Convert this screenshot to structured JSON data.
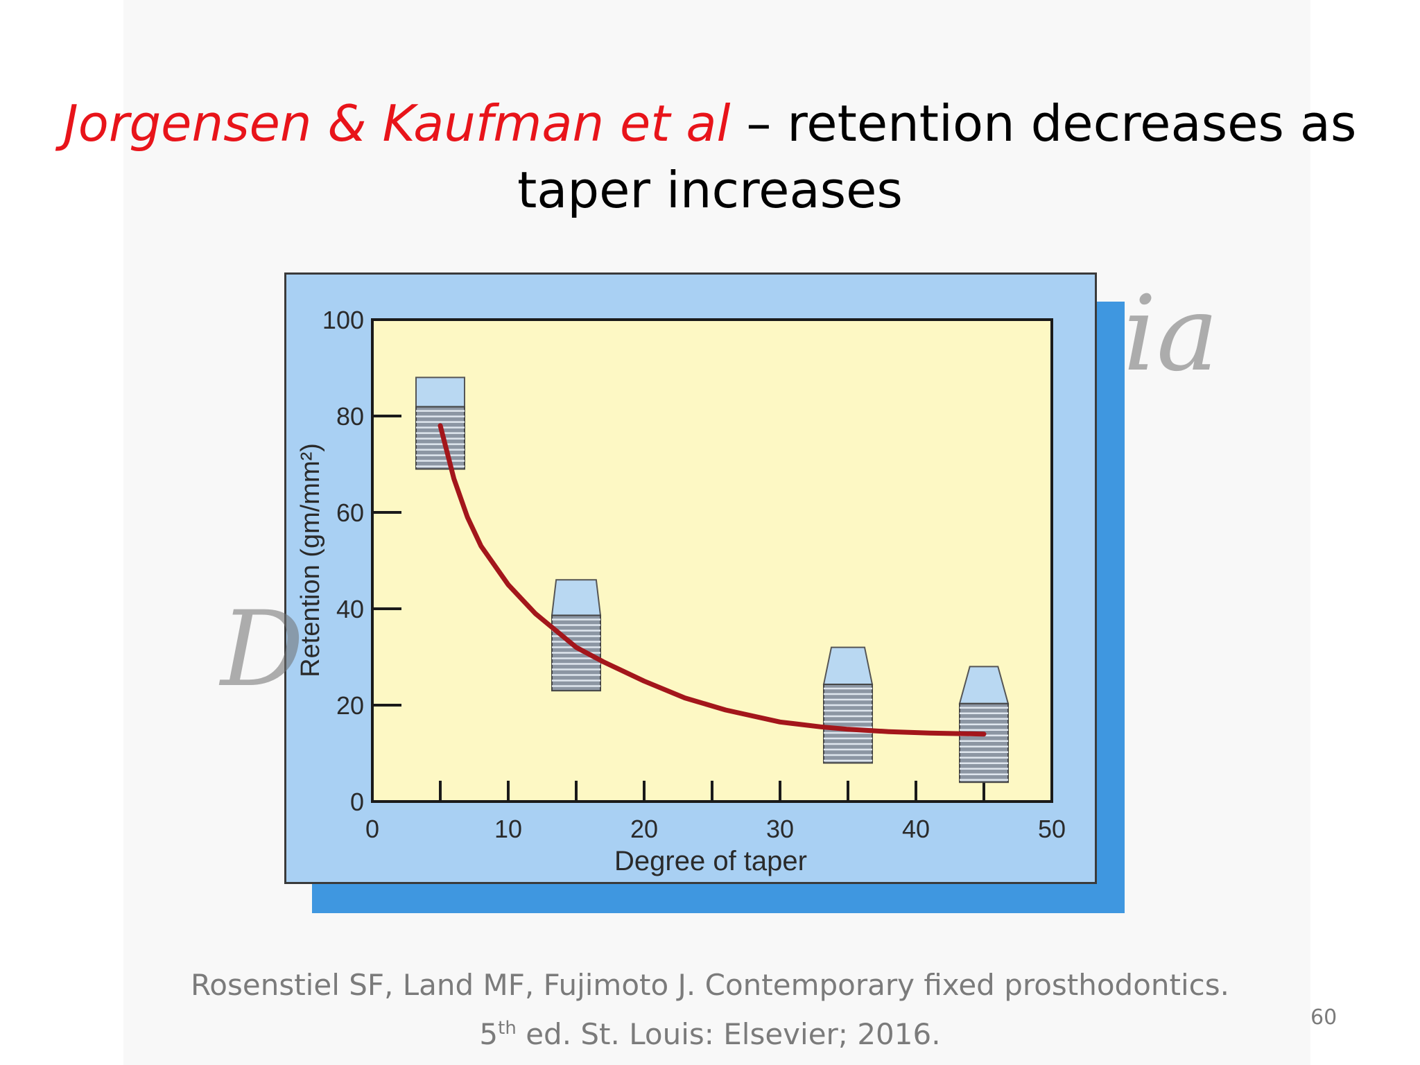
{
  "slide": {
    "title_authors": "Jorgensen & Kaufman et al",
    "title_rest": " – retention decreases as taper increases",
    "citation_line1": "Rosenstiel SF, Land MF, Fujimoto J. Contemporary fixed prosthodontics.",
    "citation_line2_pre": "5",
    "citation_line2_sup": "th",
    "citation_line2_post": " ed. St. Louis: Elsevier; 2016.",
    "page_number": "60",
    "watermark_left": "D",
    "watermark_right": "ia"
  },
  "colors": {
    "author_red": "#e8141a",
    "plot_bg": "#fdf8c4",
    "panel_bg": "#a9d0f3",
    "shadow": "#3f97e0",
    "curve": "#a3161b",
    "tooth": "#b9d8f2"
  },
  "chart_data": {
    "type": "line",
    "xlabel": "Degree of taper",
    "ylabel": "Retention (gm/mm²)",
    "xlim": [
      0,
      50
    ],
    "ylim": [
      0,
      100
    ],
    "x_ticks": [
      "0",
      "10",
      "20",
      "30",
      "40",
      "50"
    ],
    "y_ticks": [
      "0",
      "20",
      "40",
      "60",
      "80",
      "100"
    ],
    "grid": false,
    "legend": "none",
    "series": [
      {
        "x": [
          5,
          6,
          7,
          8,
          10,
          12,
          15,
          17,
          20,
          23,
          26,
          30,
          33,
          35,
          38,
          41,
          45
        ],
        "y": [
          78,
          67,
          59,
          53,
          45,
          39,
          32,
          29,
          25,
          21.5,
          19,
          16.5,
          15.5,
          15,
          14.5,
          14.2,
          14
        ]
      }
    ],
    "markers": [
      {
        "x": 5,
        "icon": "tooth-preparation-icon"
      },
      {
        "x": 15,
        "icon": "tooth-preparation-icon"
      },
      {
        "x": 35,
        "icon": "tooth-preparation-icon"
      },
      {
        "x": 45,
        "icon": "tooth-preparation-icon"
      }
    ]
  }
}
